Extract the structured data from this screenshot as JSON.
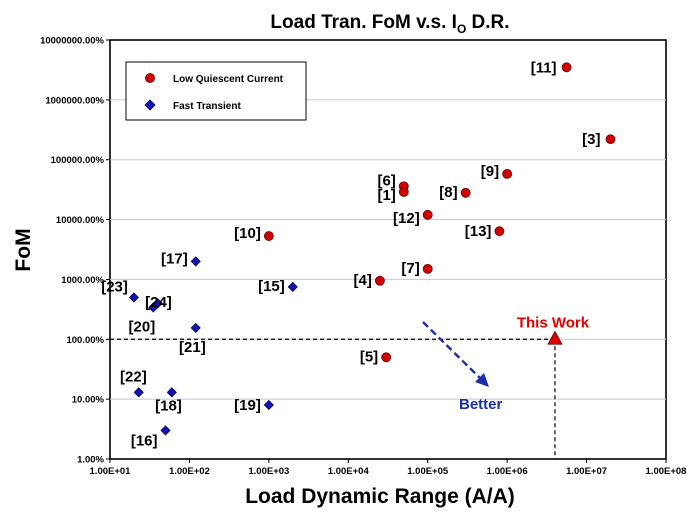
{
  "chart_data": {
    "type": "scatter",
    "title_main": "Load Tran. FoM v.s. I",
    "title_sub": "O",
    "title_tail": " D.R.",
    "xlabel": "Load Dynamic Range (A/A)",
    "ylabel": "FoM",
    "x_scale": "log",
    "y_scale": "log",
    "xlim": [
      10,
      100000000
    ],
    "ylim": [
      1,
      10000000
    ],
    "x_ticks": [
      "1.00E+01",
      "1.00E+02",
      "1.00E+03",
      "1.00E+04",
      "1.00E+05",
      "1.00E+06",
      "1.00E+07",
      "1.00E+08"
    ],
    "y_ticks": [
      "10000000.00%",
      "1000000.00%",
      "100000.00%",
      "10000.00%",
      "1000.00%",
      "100.00%",
      "10.00%",
      "1.00%"
    ],
    "legend_position": "top-left",
    "colors": {
      "low_quiescent": "#d40000",
      "fast_transient": "#1414b4",
      "this_work": "#e00000",
      "better": "#1a2fa8"
    },
    "series": [
      {
        "name": "Low Quiescent Current",
        "marker": "circle",
        "points": [
          {
            "x": 5600000,
            "y": 3500000,
            "label": "[11]"
          },
          {
            "x": 20000000,
            "y": 220000,
            "label": "[3]"
          },
          {
            "x": 1000000,
            "y": 58000,
            "label": "[9]"
          },
          {
            "x": 50000,
            "y": 36000,
            "label": "[6]"
          },
          {
            "x": 50000,
            "y": 29000,
            "label": "[1]"
          },
          {
            "x": 300000,
            "y": 28000,
            "label": "[8]"
          },
          {
            "x": 100000,
            "y": 12000,
            "label": "[12]"
          },
          {
            "x": 800000,
            "y": 6400,
            "label": "[13]"
          },
          {
            "x": 1000,
            "y": 5300,
            "label": "[10]"
          },
          {
            "x": 100000,
            "y": 1500,
            "label": "[7]"
          },
          {
            "x": 25000,
            "y": 950,
            "label": "[4]"
          },
          {
            "x": 30000,
            "y": 50,
            "label": "[5]"
          }
        ]
      },
      {
        "name": "Fast Transient",
        "marker": "diamond",
        "points": [
          {
            "x": 120,
            "y": 2000,
            "label": "[17]"
          },
          {
            "x": 2000,
            "y": 750,
            "label": "[15]"
          },
          {
            "x": 20,
            "y": 500,
            "label": "[23]"
          },
          {
            "x": 40,
            "y": 400,
            "label": "[24]"
          },
          {
            "x": 35,
            "y": 340,
            "label": "[20]"
          },
          {
            "x": 120,
            "y": 155,
            "label": "[21]"
          },
          {
            "x": 23,
            "y": 13,
            "label": "[22]"
          },
          {
            "x": 60,
            "y": 13,
            "label": "[18]"
          },
          {
            "x": 1000,
            "y": 8,
            "label": "[19]"
          },
          {
            "x": 50,
            "y": 3,
            "label": "[16]"
          }
        ]
      }
    ],
    "annotations": {
      "this_work": {
        "label": "This Work",
        "x": 4000000,
        "y": 100
      },
      "better": {
        "label": "Better"
      }
    }
  }
}
